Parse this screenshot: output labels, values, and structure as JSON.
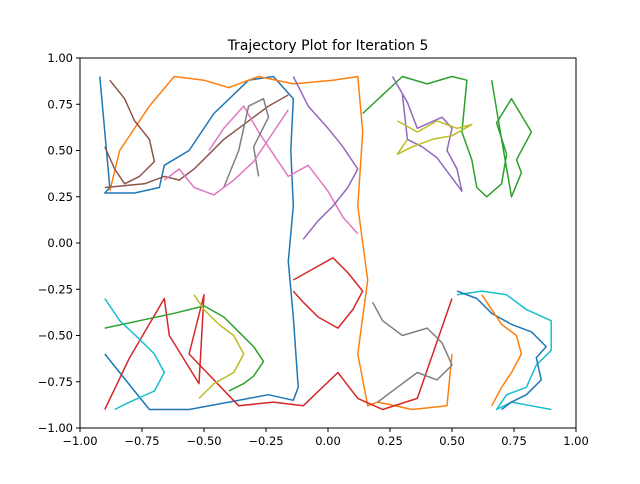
{
  "chart_data": {
    "type": "line",
    "title": "Trajectory Plot for Iteration 5",
    "xlabel": "",
    "ylabel": "",
    "xlim": [
      -1.0,
      1.0
    ],
    "ylim": [
      -1.0,
      1.0
    ],
    "x_ticks": [
      "−1.00",
      "−0.75",
      "−0.50",
      "−0.25",
      "0.00",
      "0.25",
      "0.50",
      "0.75",
      "1.00"
    ],
    "y_ticks": [
      "1.00",
      "0.75",
      "0.50",
      "0.25",
      "0.00",
      "−0.25",
      "−0.50",
      "−0.75",
      "−1.00"
    ],
    "grid": false,
    "legend": "none",
    "colors": [
      "#1f77b4",
      "#ff7f0e",
      "#2ca02c",
      "#d62728",
      "#9467bd",
      "#8c564b",
      "#e377c2",
      "#7f7f7f",
      "#bcbd22",
      "#17becf"
    ],
    "series": [
      {
        "x": [
          -0.92,
          -0.9,
          -0.88,
          -0.9,
          -0.78,
          -0.68,
          -0.66,
          -0.56,
          -0.46,
          -0.32,
          -0.22,
          -0.14,
          -0.15,
          -0.14,
          -0.16,
          -0.14,
          -0.12,
          -0.14,
          -0.24,
          -0.4,
          -0.56,
          -0.72,
          -0.9
        ],
        "y": [
          0.9,
          0.6,
          0.3,
          0.27,
          0.27,
          0.3,
          0.42,
          0.5,
          0.7,
          0.88,
          0.9,
          0.78,
          0.5,
          0.2,
          -0.1,
          -0.4,
          -0.78,
          -0.85,
          -0.82,
          -0.86,
          -0.9,
          -0.9,
          -0.6
        ]
      },
      {
        "x": [
          -0.88,
          -0.84,
          -0.72,
          -0.62,
          -0.5,
          -0.4,
          -0.28,
          -0.14,
          0.02,
          0.12,
          0.14,
          0.12,
          0.16,
          0.12,
          0.16,
          0.2,
          0.34,
          0.48,
          0.5
        ],
        "y": [
          0.28,
          0.5,
          0.74,
          0.9,
          0.88,
          0.84,
          0.9,
          0.86,
          0.88,
          0.9,
          0.6,
          0.2,
          -0.2,
          -0.6,
          -0.88,
          -0.86,
          -0.9,
          -0.88,
          -0.6
        ]
      },
      {
        "x": [
          0.14,
          0.3,
          0.4,
          0.5,
          0.56,
          0.54,
          0.58,
          0.6,
          0.64,
          0.7,
          0.72,
          0.68,
          0.74,
          0.82,
          0.76,
          0.78,
          0.74,
          0.7,
          0.66
        ],
        "y": [
          0.7,
          0.9,
          0.86,
          0.9,
          0.88,
          0.6,
          0.45,
          0.3,
          0.25,
          0.32,
          0.48,
          0.65,
          0.78,
          0.6,
          0.45,
          0.38,
          0.25,
          0.56,
          0.88
        ]
      },
      {
        "x": [
          -0.9,
          -0.8,
          -0.66,
          -0.64,
          -0.52,
          -0.5,
          -0.56,
          -0.36,
          -0.22,
          -0.1,
          0.04,
          0.12,
          0.22,
          0.36,
          0.5
        ],
        "y": [
          -0.9,
          -0.62,
          -0.3,
          -0.5,
          -0.76,
          -0.28,
          -0.6,
          -0.88,
          -0.86,
          -0.88,
          -0.7,
          -0.84,
          -0.9,
          -0.84,
          -0.3
        ]
      },
      {
        "x": [
          0.26,
          0.32,
          0.36,
          0.46,
          0.5,
          0.48,
          0.52,
          0.54,
          0.44,
          0.38,
          0.32,
          0.3
        ],
        "y": [
          0.9,
          0.76,
          0.62,
          0.68,
          0.62,
          0.5,
          0.4,
          0.28,
          0.46,
          0.52,
          0.56,
          0.8
        ]
      },
      {
        "x": [
          -0.9,
          -0.74,
          -0.66,
          -0.6,
          -0.54,
          -0.48,
          -0.42,
          -0.36,
          -0.3,
          -0.24,
          -0.16
        ],
        "y": [
          0.3,
          0.32,
          0.36,
          0.34,
          0.4,
          0.48,
          0.56,
          0.62,
          0.68,
          0.74,
          0.8
        ]
      },
      {
        "x": [
          -0.48,
          -0.42,
          -0.34,
          -0.28,
          -0.22,
          -0.16,
          -0.08,
          0.0,
          0.06,
          0.12
        ],
        "y": [
          0.5,
          0.62,
          0.74,
          0.6,
          0.48,
          0.36,
          0.42,
          0.28,
          0.14,
          0.05
        ]
      },
      {
        "x": [
          -0.28,
          -0.3,
          -0.24,
          -0.26,
          -0.32,
          -0.36,
          -0.42
        ],
        "y": [
          0.36,
          0.52,
          0.68,
          0.78,
          0.74,
          0.5,
          0.3
        ]
      },
      {
        "x": [
          0.28,
          0.36,
          0.44,
          0.52,
          0.58,
          0.5,
          0.42,
          0.34,
          0.28,
          0.32
        ],
        "y": [
          0.66,
          0.6,
          0.66,
          0.62,
          0.64,
          0.58,
          0.56,
          0.52,
          0.48,
          0.56
        ]
      },
      {
        "x": [
          0.52,
          0.62,
          0.72,
          0.8,
          0.9,
          0.9,
          0.84,
          0.8,
          0.72,
          0.68,
          0.74,
          0.82,
          0.9
        ],
        "y": [
          -0.28,
          -0.26,
          -0.28,
          -0.36,
          -0.42,
          -0.58,
          -0.66,
          -0.78,
          -0.82,
          -0.9,
          -0.86,
          -0.88,
          -0.9
        ]
      },
      {
        "x": [
          0.52,
          0.6,
          0.66,
          0.74,
          0.82,
          0.88,
          0.84,
          0.86,
          0.8,
          0.74,
          0.7
        ],
        "y": [
          -0.26,
          -0.3,
          -0.38,
          -0.44,
          -0.48,
          -0.56,
          -0.62,
          -0.74,
          -0.82,
          -0.86,
          -0.9
        ]
      },
      {
        "x": [
          0.62,
          0.66,
          0.7,
          0.76,
          0.78,
          0.74,
          0.7,
          0.66
        ],
        "y": [
          -0.28,
          -0.36,
          -0.44,
          -0.5,
          -0.6,
          -0.7,
          -0.78,
          -0.88
        ]
      },
      {
        "x": [
          -0.9,
          -0.76,
          -0.62,
          -0.5,
          -0.42,
          -0.36,
          -0.3,
          -0.26,
          -0.3,
          -0.34,
          -0.4
        ],
        "y": [
          -0.46,
          -0.42,
          -0.38,
          -0.34,
          -0.4,
          -0.48,
          -0.56,
          -0.64,
          -0.72,
          -0.76,
          -0.8
        ]
      },
      {
        "x": [
          -0.14,
          -0.06,
          0.02,
          0.08,
          0.14,
          0.1,
          0.04,
          -0.04,
          -0.1,
          -0.14
        ],
        "y": [
          -0.2,
          -0.14,
          -0.08,
          -0.16,
          -0.26,
          -0.36,
          -0.46,
          -0.4,
          -0.32,
          -0.26
        ]
      },
      {
        "x": [
          -0.14,
          -0.08,
          0.0,
          0.06,
          0.12,
          0.08,
          0.02,
          -0.04,
          -0.1
        ],
        "y": [
          0.9,
          0.74,
          0.62,
          0.52,
          0.4,
          0.3,
          0.2,
          0.12,
          0.02
        ]
      },
      {
        "x": [
          -0.88,
          -0.82,
          -0.78,
          -0.72,
          -0.7,
          -0.76,
          -0.82,
          -0.86,
          -0.9
        ],
        "y": [
          0.88,
          0.78,
          0.66,
          0.56,
          0.44,
          0.36,
          0.32,
          0.4,
          0.52
        ]
      },
      {
        "x": [
          -0.66,
          -0.6,
          -0.54,
          -0.46,
          -0.38,
          -0.3,
          -0.22,
          -0.16
        ],
        "y": [
          0.34,
          0.4,
          0.3,
          0.26,
          0.34,
          0.44,
          0.6,
          0.72
        ]
      },
      {
        "x": [
          0.18,
          0.22,
          0.3,
          0.4,
          0.46,
          0.5,
          0.44,
          0.36,
          0.28,
          0.2
        ],
        "y": [
          -0.32,
          -0.42,
          -0.5,
          -0.46,
          -0.54,
          -0.66,
          -0.74,
          -0.7,
          -0.78,
          -0.86
        ]
      },
      {
        "x": [
          -0.54,
          -0.5,
          -0.44,
          -0.38,
          -0.34,
          -0.38,
          -0.46,
          -0.52
        ],
        "y": [
          -0.28,
          -0.36,
          -0.44,
          -0.5,
          -0.6,
          -0.7,
          -0.76,
          -0.84
        ]
      },
      {
        "x": [
          -0.9,
          -0.84,
          -0.76,
          -0.7,
          -0.66,
          -0.7,
          -0.8,
          -0.86
        ],
        "y": [
          -0.3,
          -0.42,
          -0.52,
          -0.6,
          -0.7,
          -0.8,
          -0.86,
          -0.9
        ]
      }
    ]
  }
}
